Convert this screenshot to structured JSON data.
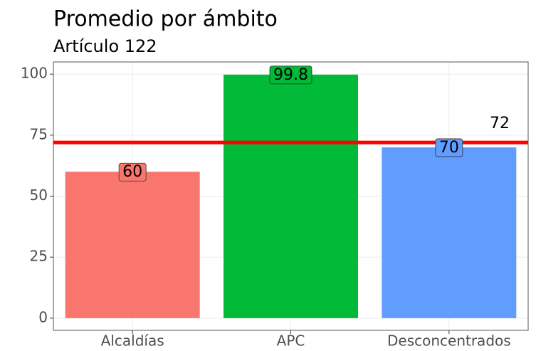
{
  "chart_data": {
    "type": "bar",
    "title": "Promedio por ámbito",
    "subtitle": "Artículo 122",
    "categories": [
      "Alcaldías",
      "APC",
      "Desconcentrados"
    ],
    "values": [
      60,
      99.8,
      70
    ],
    "colors": [
      "#f8766d",
      "#00ba38",
      "#619cff"
    ],
    "ylim": [
      -5,
      105
    ],
    "yticks": [
      0,
      25,
      50,
      75,
      100
    ],
    "grid": true,
    "reference_line": {
      "value": 72,
      "label": "72",
      "color": "#ff0000"
    }
  }
}
